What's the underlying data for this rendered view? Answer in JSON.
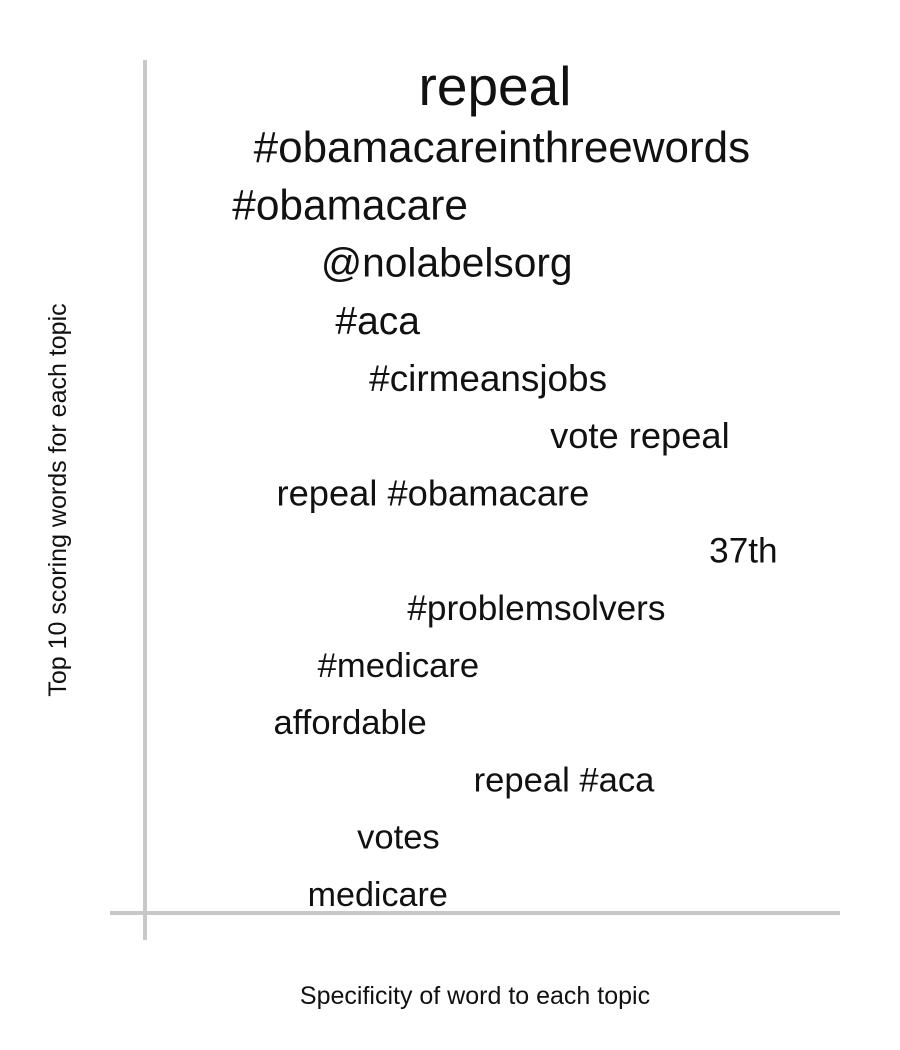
{
  "chart_data": {
    "type": "scatter",
    "title": "",
    "xlabel": "Specificity of word to each topic",
    "ylabel": "Top 10 scoring words for each topic",
    "grid": false,
    "legend": "none",
    "axis_color": "#c8c8c8",
    "text_color": "#111111",
    "points": [
      {
        "label": "repeal",
        "x": 0.5,
        "rank": 1,
        "weight": 1.0
      },
      {
        "label": "#obamacareinthreewords",
        "x": 0.51,
        "rank": 2,
        "weight": 0.8
      },
      {
        "label": "#obamacare",
        "x": 0.29,
        "rank": 3,
        "weight": 0.77
      },
      {
        "label": "@nolabelsorg",
        "x": 0.43,
        "rank": 4,
        "weight": 0.74
      },
      {
        "label": "#aca",
        "x": 0.33,
        "rank": 5,
        "weight": 0.71
      },
      {
        "label": "#cirmeansjobs",
        "x": 0.49,
        "rank": 6,
        "weight": 0.67
      },
      {
        "label": "vote repeal",
        "x": 0.71,
        "rank": 7,
        "weight": 0.66
      },
      {
        "label": "repeal #obamacare",
        "x": 0.41,
        "rank": 8,
        "weight": 0.66
      },
      {
        "label": "37th",
        "x": 0.86,
        "rank": 9,
        "weight": 0.64
      },
      {
        "label": "#problemsolvers",
        "x": 0.56,
        "rank": 10,
        "weight": 0.64
      },
      {
        "label": "#medicare",
        "x": 0.36,
        "rank": 11,
        "weight": 0.63
      },
      {
        "label": "affordable",
        "x": 0.29,
        "rank": 12,
        "weight": 0.63
      },
      {
        "label": "repeal #aca",
        "x": 0.6,
        "rank": 13,
        "weight": 0.63
      },
      {
        "label": "votes",
        "x": 0.36,
        "rank": 14,
        "weight": 0.63
      },
      {
        "label": "medicare",
        "x": 0.33,
        "rank": 15,
        "weight": 0.62
      }
    ]
  }
}
